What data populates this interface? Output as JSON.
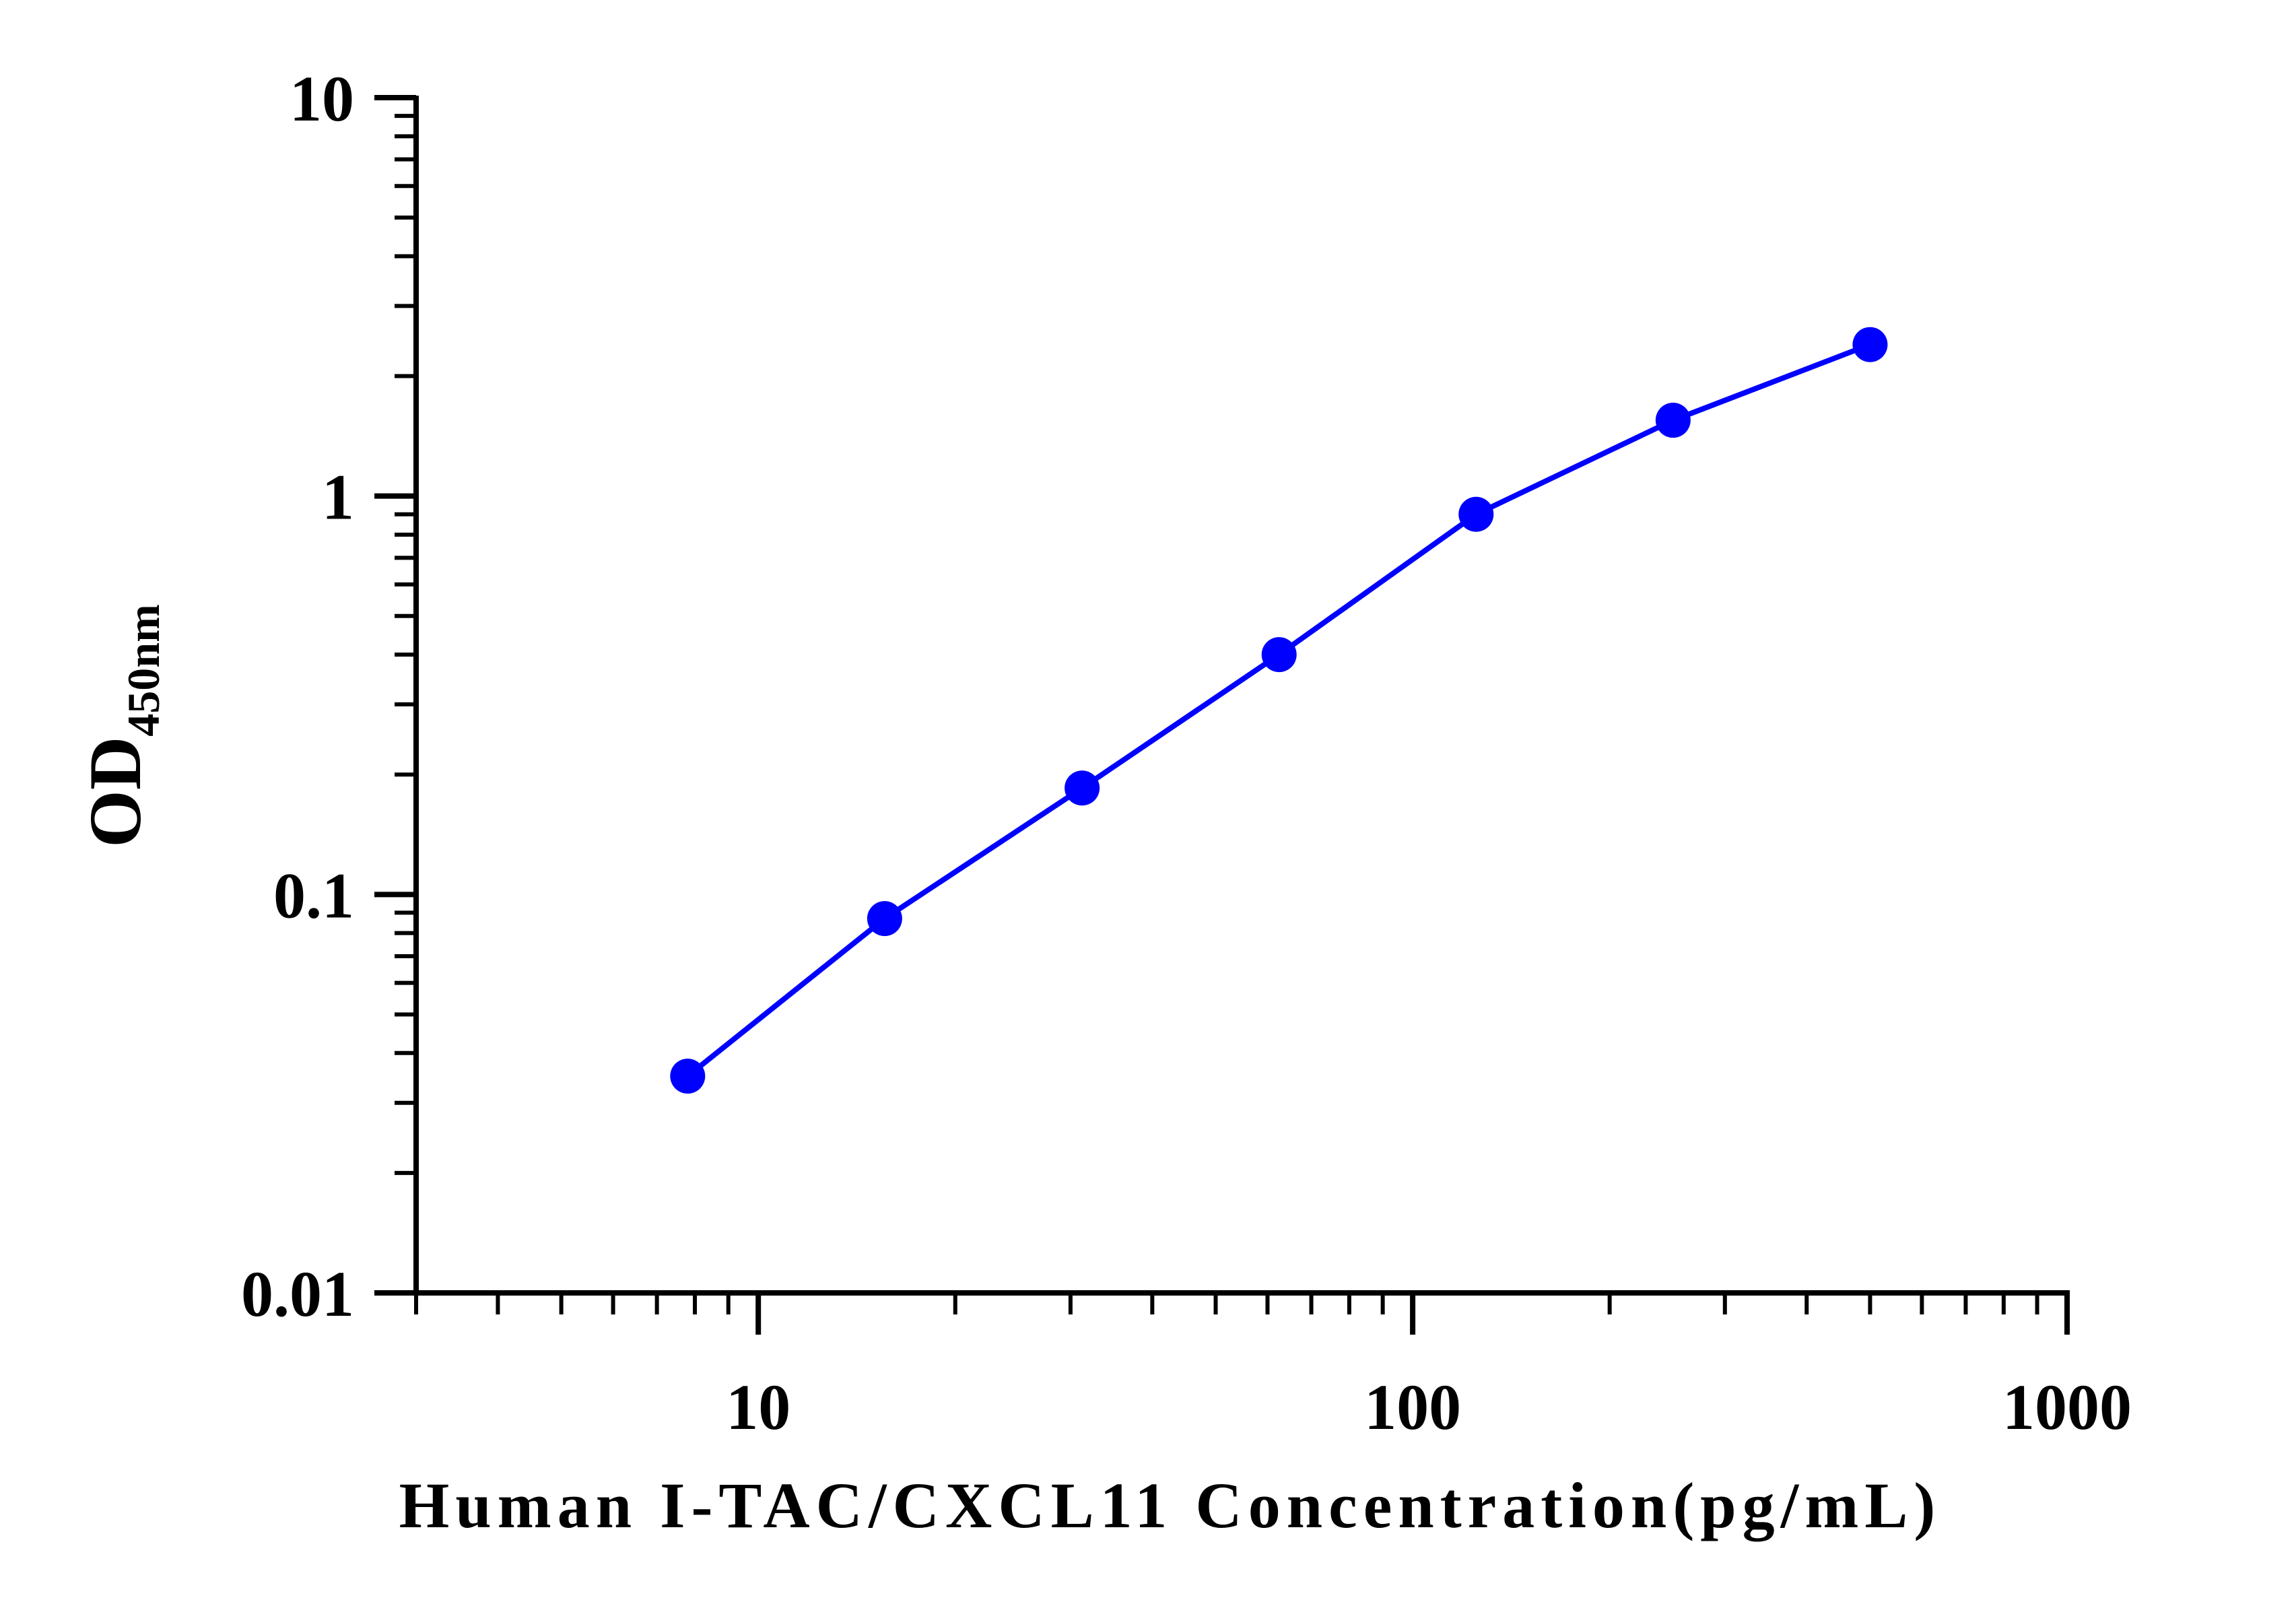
{
  "chart_data": {
    "type": "line",
    "title": "",
    "xlabel": "Human I-TAC/CXCL11 Concentration(pg/mL)",
    "ylabel": {
      "main": "OD",
      "subscript": "450nm"
    },
    "xscale": "log",
    "yscale": "log",
    "xlim": [
      3,
      1000
    ],
    "ylim": [
      0.01,
      10
    ],
    "xticks": [
      10,
      100,
      1000
    ],
    "xtick_labels": [
      "10",
      "100",
      "1000"
    ],
    "yticks": [
      0.01,
      0.1,
      1,
      10
    ],
    "ytick_labels": [
      "0.01",
      "0.1",
      "1",
      "10"
    ],
    "grid": false,
    "series": [
      {
        "x": [
          7.8,
          15.6,
          31.25,
          62.5,
          125,
          250,
          500
        ],
        "y": [
          0.035,
          0.087,
          0.185,
          0.4,
          0.9,
          1.55,
          2.4
        ]
      }
    ],
    "colors": {
      "series": "#0000ff",
      "axes": "#000000"
    }
  }
}
